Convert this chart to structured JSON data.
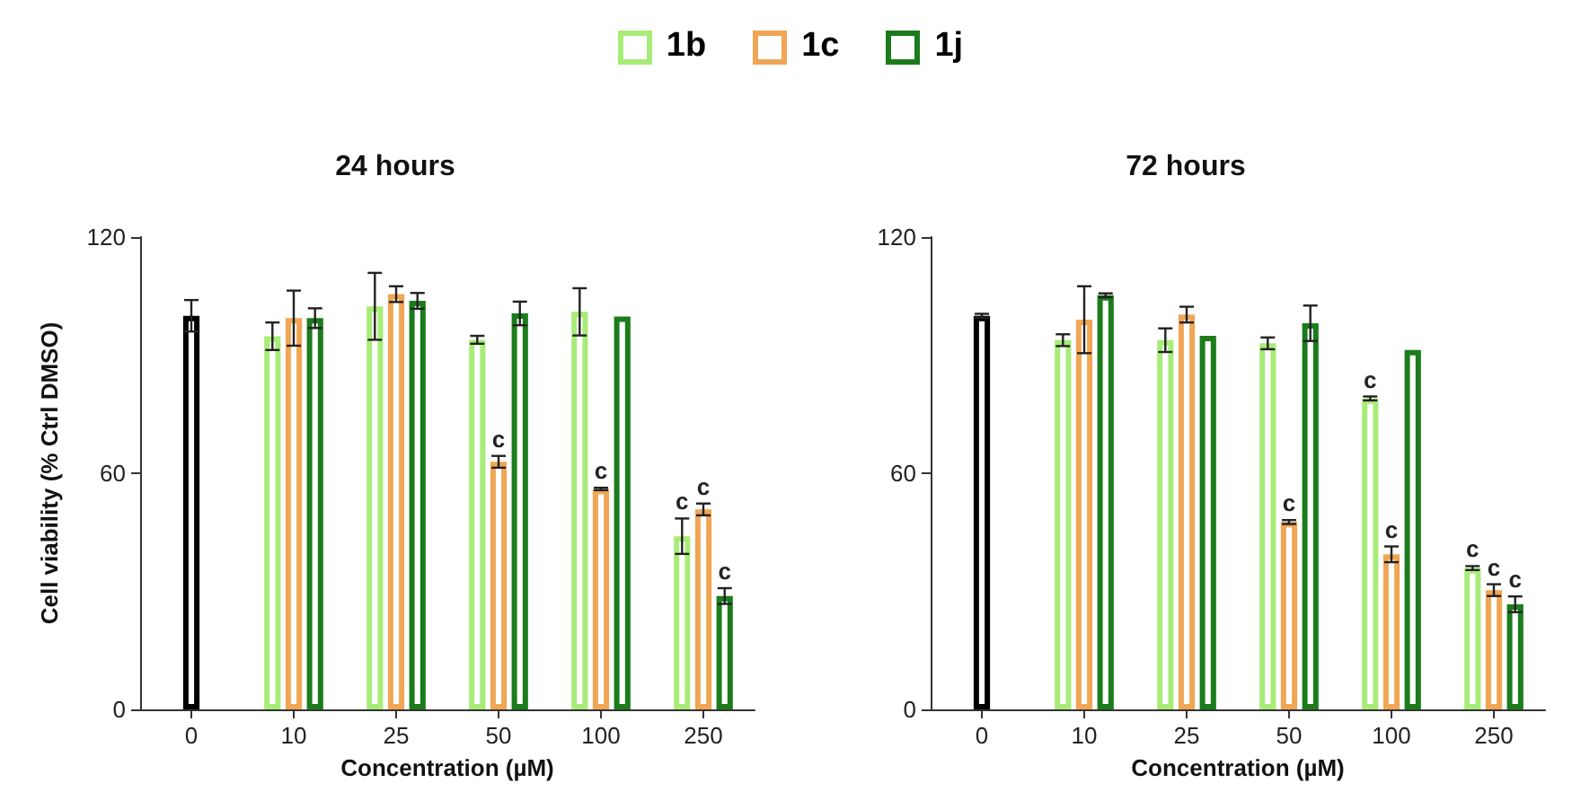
{
  "chart_data": [
    {
      "type": "bar",
      "title": "24 hours",
      "xlabel": "Concentration (µM)",
      "ylabel": "Cell viability (% Ctrl DMSO)",
      "categories": [
        "0",
        "10",
        "25",
        "50",
        "100",
        "250"
      ],
      "ylim": [
        0,
        120
      ],
      "yticks": [
        0,
        60,
        120
      ],
      "grid": false,
      "legend": "top",
      "series": [
        {
          "color": "#000000",
          "values": [
            100,
            null,
            null,
            null,
            null,
            null
          ],
          "errors": [
            4,
            null,
            null,
            null,
            null,
            null
          ]
        },
        {
          "name": "1b",
          "color": "#a8ec78",
          "values": [
            null,
            94.8,
            102.4,
            93.9,
            101,
            44
          ],
          "errors": [
            null,
            3.5,
            8.5,
            1,
            6,
            4.5
          ],
          "value_labels": [
            null,
            null,
            null,
            null,
            null,
            "c"
          ]
        },
        {
          "name": "1c",
          "color": "#f0a654",
          "values": [
            null,
            99.4,
            105.5,
            62.9,
            56,
            50.8
          ],
          "errors": [
            null,
            7,
            2,
            1.5,
            0.3,
            1.5
          ],
          "value_labels": [
            null,
            null,
            null,
            "c",
            "c",
            "c"
          ]
        },
        {
          "name": "1j",
          "color": "#1c7c1c",
          "values": [
            null,
            99.4,
            103.8,
            100.6,
            99.8,
            28.8
          ],
          "errors": [
            null,
            2.5,
            2,
            3,
            null,
            2
          ],
          "value_labels": [
            null,
            null,
            null,
            null,
            null,
            "c"
          ]
        }
      ]
    },
    {
      "type": "bar",
      "title": "72 hours",
      "xlabel": "Concentration (µM)",
      "categories": [
        "0",
        "10",
        "25",
        "50",
        "100",
        "250"
      ],
      "ylim": [
        0,
        120
      ],
      "yticks": [
        0,
        60,
        120
      ],
      "grid": false,
      "series": [
        {
          "color": "#000000",
          "values": [
            100,
            null,
            null,
            null,
            null,
            null
          ],
          "errors": [
            0.5,
            null,
            null,
            null,
            null,
            null
          ]
        },
        {
          "color": "#a8ec78",
          "values": [
            null,
            93.8,
            93.8,
            93,
            79,
            35.9
          ],
          "errors": [
            null,
            1.5,
            3,
            1.5,
            0.5,
            0.5
          ],
          "value_labels": [
            null,
            null,
            null,
            null,
            "c",
            "c"
          ]
        },
        {
          "color": "#f0a654",
          "values": [
            null,
            99,
            100.3,
            47.6,
            39.4,
            30.3
          ],
          "errors": [
            null,
            8.5,
            2,
            0.5,
            2,
            1.5
          ],
          "value_labels": [
            null,
            null,
            null,
            "c",
            "c",
            "c"
          ]
        },
        {
          "color": "#1c7c1c",
          "values": [
            null,
            105.2,
            94.9,
            98.1,
            91.3,
            26.7
          ],
          "errors": [
            null,
            0.5,
            null,
            4.5,
            null,
            2
          ],
          "value_labels": [
            null,
            null,
            null,
            null,
            null,
            "c"
          ]
        }
      ]
    }
  ]
}
